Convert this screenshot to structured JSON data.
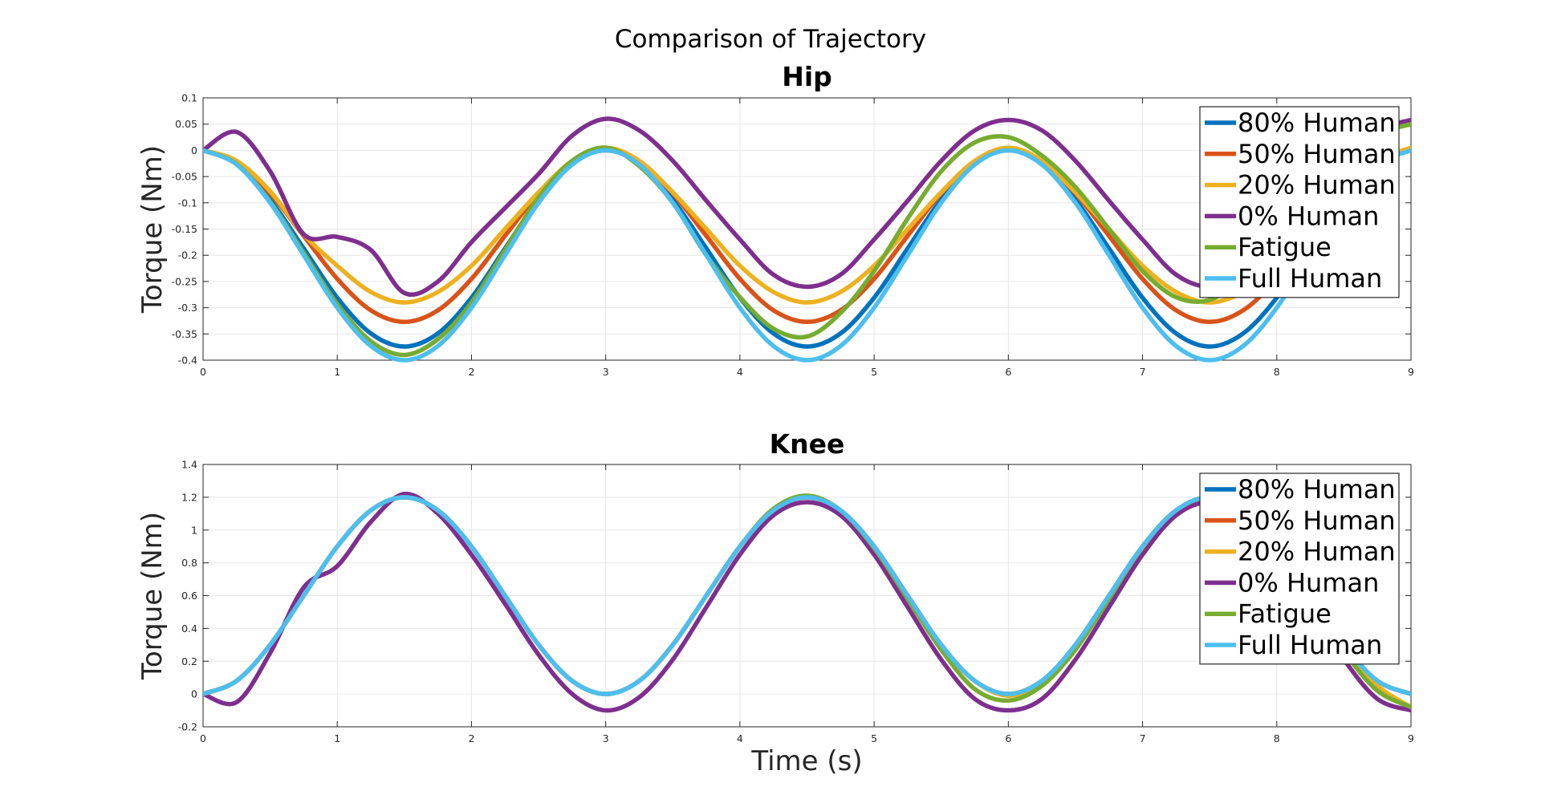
{
  "figure": {
    "suptitle": "Comparison of Trajectory"
  },
  "chart_data": [
    {
      "type": "line",
      "title": "Hip",
      "xlabel": "",
      "ylabel": "Torque (Nm)",
      "xlim": [
        0,
        9
      ],
      "ylim": [
        -0.4,
        0.1
      ],
      "xticks": [
        "0",
        "1",
        "2",
        "3",
        "4",
        "5",
        "6",
        "7",
        "8",
        "9"
      ],
      "yticks": [
        "-0.4",
        "-0.35",
        "-0.3",
        "-0.25",
        "-0.2",
        "-0.15",
        "-0.1",
        "-0.05",
        "0",
        "0.05",
        "0.1"
      ],
      "grid": true,
      "legend_position": "top-right",
      "x": [
        0,
        0.25,
        0.5,
        0.75,
        1,
        1.25,
        1.5,
        1.75,
        2,
        2.25,
        2.5,
        2.75,
        3,
        3.25,
        3.5,
        3.75,
        4,
        4.25,
        4.5,
        4.75,
        5,
        5.25,
        5.5,
        5.75,
        6,
        6.25,
        6.5,
        6.75,
        7,
        7.25,
        7.5,
        7.75,
        8,
        8.25,
        8.5,
        8.75,
        9
      ],
      "series": [
        {
          "name": "80% Human",
          "color": "#0072BD",
          "values": [
            0,
            -0.025,
            -0.094,
            -0.187,
            -0.281,
            -0.349,
            -0.374,
            -0.349,
            -0.281,
            -0.187,
            -0.094,
            -0.025,
            0,
            -0.025,
            -0.094,
            -0.187,
            -0.281,
            -0.349,
            -0.374,
            -0.349,
            -0.281,
            -0.187,
            -0.094,
            -0.025,
            0,
            -0.025,
            -0.094,
            -0.187,
            -0.281,
            -0.349,
            -0.374,
            -0.349,
            -0.281,
            -0.187,
            -0.094,
            -0.025,
            0
          ]
        },
        {
          "name": "50% Human",
          "color": "#D95319",
          "values": [
            0,
            -0.022,
            -0.082,
            -0.163,
            -0.245,
            -0.305,
            -0.327,
            -0.305,
            -0.245,
            -0.163,
            -0.082,
            -0.022,
            0,
            -0.022,
            -0.082,
            -0.163,
            -0.245,
            -0.305,
            -0.327,
            -0.305,
            -0.245,
            -0.163,
            -0.082,
            -0.022,
            0,
            -0.022,
            -0.082,
            -0.163,
            -0.245,
            -0.305,
            -0.327,
            -0.305,
            -0.245,
            -0.163,
            -0.082,
            -0.022,
            0
          ]
        },
        {
          "name": "20% Human",
          "color": "#EDB120",
          "values": [
            0,
            -0.02,
            -0.078,
            -0.16,
            -0.22,
            -0.27,
            -0.29,
            -0.27,
            -0.22,
            -0.15,
            -0.08,
            -0.02,
            0.005,
            -0.02,
            -0.08,
            -0.15,
            -0.22,
            -0.27,
            -0.29,
            -0.27,
            -0.22,
            -0.15,
            -0.08,
            -0.02,
            0.005,
            -0.02,
            -0.08,
            -0.15,
            -0.22,
            -0.27,
            -0.29,
            -0.27,
            -0.22,
            -0.15,
            -0.08,
            -0.02,
            0.005
          ]
        },
        {
          "name": "0% Human",
          "color": "#7E2F8E",
          "values": [
            0,
            0.035,
            -0.04,
            -0.16,
            -0.165,
            -0.19,
            -0.272,
            -0.25,
            -0.175,
            -0.11,
            -0.045,
            0.028,
            0.06,
            0.038,
            -0.02,
            -0.096,
            -0.17,
            -0.237,
            -0.26,
            -0.237,
            -0.17,
            -0.096,
            -0.02,
            0.038,
            0.058,
            0.038,
            -0.02,
            -0.096,
            -0.17,
            -0.237,
            -0.26,
            -0.237,
            -0.17,
            -0.096,
            -0.02,
            0.038,
            0.058
          ]
        },
        {
          "name": "Fatigue",
          "color": "#77AC30",
          "values": [
            0,
            -0.026,
            -0.098,
            -0.195,
            -0.293,
            -0.364,
            -0.39,
            -0.36,
            -0.29,
            -0.19,
            -0.09,
            -0.02,
            0.005,
            -0.03,
            -0.1,
            -0.2,
            -0.28,
            -0.34,
            -0.355,
            -0.31,
            -0.23,
            -0.13,
            -0.04,
            0.015,
            0.025,
            -0.01,
            -0.07,
            -0.15,
            -0.23,
            -0.28,
            -0.285,
            -0.24,
            -0.17,
            -0.09,
            -0.02,
            0.03,
            0.05
          ]
        },
        {
          "name": "Full Human",
          "color": "#4DBEEE",
          "values": [
            0,
            -0.027,
            -0.1,
            -0.2,
            -0.3,
            -0.373,
            -0.4,
            -0.373,
            -0.3,
            -0.2,
            -0.1,
            -0.027,
            0,
            -0.027,
            -0.1,
            -0.2,
            -0.3,
            -0.373,
            -0.4,
            -0.373,
            -0.3,
            -0.2,
            -0.1,
            -0.027,
            0,
            -0.027,
            -0.1,
            -0.2,
            -0.3,
            -0.373,
            -0.4,
            -0.373,
            -0.3,
            -0.2,
            -0.1,
            -0.027,
            0
          ]
        }
      ]
    },
    {
      "type": "line",
      "title": "Knee",
      "xlabel": "Time (s)",
      "ylabel": "Torque (Nm)",
      "xlim": [
        0,
        9
      ],
      "ylim": [
        -0.2,
        1.4
      ],
      "xticks": [
        "0",
        "1",
        "2",
        "3",
        "4",
        "5",
        "6",
        "7",
        "8",
        "9"
      ],
      "yticks": [
        "-0.2",
        "0",
        "0.2",
        "0.4",
        "0.6",
        "0.8",
        "1",
        "1.2",
        "1.4"
      ],
      "grid": true,
      "legend_position": "top-right",
      "x": [
        0,
        0.25,
        0.5,
        0.75,
        1,
        1.25,
        1.5,
        1.75,
        2,
        2.25,
        2.5,
        2.75,
        3,
        3.25,
        3.5,
        3.75,
        4,
        4.25,
        4.5,
        4.75,
        5,
        5.25,
        5.5,
        5.75,
        6,
        6.25,
        6.5,
        6.75,
        7,
        7.25,
        7.5,
        7.75,
        8,
        8.25,
        8.5,
        8.75,
        9
      ],
      "series": [
        {
          "name": "80% Human",
          "color": "#0072BD",
          "values": [
            0,
            0.08,
            0.3,
            0.6,
            0.9,
            1.12,
            1.2,
            1.12,
            0.9,
            0.6,
            0.3,
            0.08,
            0,
            0.08,
            0.3,
            0.6,
            0.9,
            1.12,
            1.2,
            1.12,
            0.9,
            0.6,
            0.3,
            0.08,
            0,
            0.08,
            0.3,
            0.6,
            0.9,
            1.12,
            1.2,
            1.12,
            0.9,
            0.6,
            0.3,
            0.08,
            0
          ]
        },
        {
          "name": "50% Human",
          "color": "#D95319",
          "values": [
            0,
            0.08,
            0.3,
            0.6,
            0.9,
            1.12,
            1.2,
            1.12,
            0.9,
            0.6,
            0.3,
            0.08,
            0,
            0.08,
            0.3,
            0.6,
            0.9,
            1.12,
            1.2,
            1.12,
            0.9,
            0.6,
            0.3,
            0.08,
            0,
            0.08,
            0.3,
            0.6,
            0.9,
            1.12,
            1.2,
            1.12,
            0.9,
            0.6,
            0.3,
            0.08,
            0
          ]
        },
        {
          "name": "20% Human",
          "color": "#EDB120",
          "values": [
            0,
            0.08,
            0.3,
            0.6,
            0.9,
            1.12,
            1.2,
            1.12,
            0.9,
            0.6,
            0.3,
            0.08,
            0,
            0.08,
            0.3,
            0.6,
            0.9,
            1.12,
            1.2,
            1.12,
            0.9,
            0.6,
            0.3,
            0.08,
            -0.01,
            0.07,
            0.28,
            0.58,
            0.88,
            1.1,
            1.19,
            1.1,
            0.88,
            0.58,
            0.28,
            0.05,
            -0.08
          ]
        },
        {
          "name": "0% Human",
          "color": "#7E2F8E",
          "values": [
            0,
            -0.05,
            0.25,
            0.65,
            0.78,
            1.05,
            1.22,
            1.1,
            0.85,
            0.55,
            0.24,
            0,
            -0.1,
            -0.02,
            0.21,
            0.53,
            0.85,
            1.09,
            1.17,
            1.09,
            0.85,
            0.53,
            0.21,
            -0.03,
            -0.1,
            -0.03,
            0.21,
            0.53,
            0.85,
            1.09,
            1.17,
            1.09,
            0.85,
            0.53,
            0.21,
            -0.03,
            -0.1
          ]
        },
        {
          "name": "Fatigue",
          "color": "#77AC30",
          "values": [
            0,
            0.08,
            0.3,
            0.6,
            0.9,
            1.12,
            1.2,
            1.12,
            0.9,
            0.6,
            0.3,
            0.08,
            0,
            0.08,
            0.3,
            0.6,
            0.9,
            1.13,
            1.21,
            1.12,
            0.89,
            0.58,
            0.27,
            0.03,
            -0.04,
            0.05,
            0.27,
            0.58,
            0.9,
            1.12,
            1.2,
            1.11,
            0.88,
            0.57,
            0.26,
            0.02,
            -0.08
          ]
        },
        {
          "name": "Full Human",
          "color": "#4DBEEE",
          "values": [
            0,
            0.08,
            0.3,
            0.6,
            0.9,
            1.12,
            1.2,
            1.12,
            0.9,
            0.6,
            0.3,
            0.08,
            0,
            0.08,
            0.3,
            0.6,
            0.9,
            1.12,
            1.2,
            1.12,
            0.9,
            0.6,
            0.3,
            0.08,
            0,
            0.08,
            0.3,
            0.6,
            0.9,
            1.12,
            1.2,
            1.12,
            0.9,
            0.6,
            0.3,
            0.08,
            0
          ]
        }
      ]
    }
  ]
}
